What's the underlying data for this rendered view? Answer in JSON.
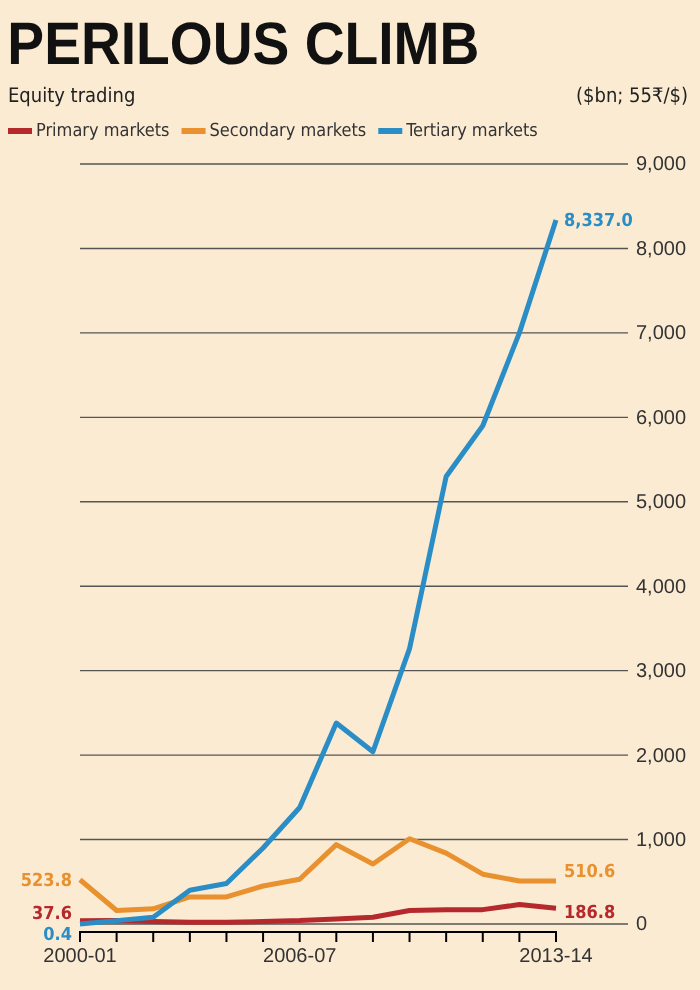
{
  "chart_data": {
    "type": "line",
    "title": "PERILOUS CLIMB",
    "subtitle": "Equity trading",
    "annotations": [
      "($bn; 55₹/$)"
    ],
    "categories": [
      "2000-01",
      null,
      null,
      null,
      null,
      null,
      "2006-07",
      null,
      null,
      null,
      null,
      null,
      null,
      "2013-14"
    ],
    "series": [
      {
        "name": "Primary markets",
        "color": "#b5282c",
        "values": [
          37.6,
          40,
          30,
          20,
          20,
          30,
          40,
          60,
          80,
          160,
          170,
          170,
          230,
          186.8
        ],
        "value_labels": [
          "37.6",
          null,
          null,
          null,
          null,
          null,
          null,
          null,
          null,
          null,
          null,
          null,
          null,
          "186.8"
        ]
      },
      {
        "name": "Secondary markets",
        "color": "#e8912e",
        "values": [
          523.8,
          160,
          180,
          320,
          320,
          450,
          530,
          940,
          710,
          1010,
          840,
          590,
          510,
          510.6
        ],
        "value_labels": [
          "523.8",
          null,
          null,
          null,
          null,
          null,
          null,
          null,
          null,
          null,
          null,
          null,
          null,
          "510.6"
        ]
      },
      {
        "name": "Tertiary markets",
        "color": "#2a8dc5",
        "values": [
          0.4,
          40,
          80,
          400,
          480,
          900,
          1380,
          2380,
          2040,
          3260,
          5300,
          5900,
          7000,
          8337.0
        ],
        "value_labels": [
          "0.4",
          null,
          null,
          null,
          null,
          null,
          null,
          null,
          null,
          null,
          null,
          null,
          null,
          "8,337.0"
        ]
      }
    ],
    "ylim": [
      0,
      9000
    ],
    "yticks": [
      {
        "value": 0,
        "label": "0"
      },
      {
        "value": 1000,
        "label": "1,000"
      },
      {
        "value": 2000,
        "label": "2,000"
      },
      {
        "value": 3000,
        "label": "3,000"
      },
      {
        "value": 4000,
        "label": "4,000"
      },
      {
        "value": 5000,
        "label": "5,000"
      },
      {
        "value": 6000,
        "label": "6,000"
      },
      {
        "value": 7000,
        "label": "7,000"
      },
      {
        "value": 8000,
        "label": "8,000"
      },
      {
        "value": 9000,
        "label": "9,000"
      }
    ],
    "grid": "y",
    "legend": "top",
    "line_style": "solid"
  }
}
